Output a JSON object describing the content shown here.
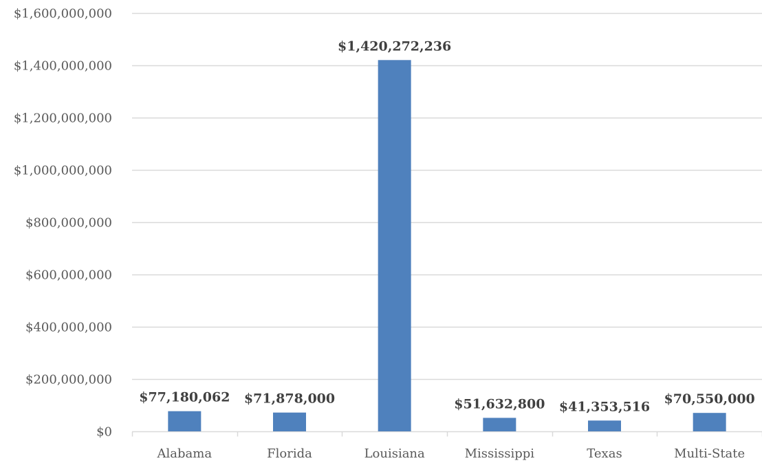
{
  "chart_data": {
    "type": "bar",
    "categories": [
      "Alabama",
      "Florida",
      "Louisiana",
      "Mississippi",
      "Texas",
      "Multi-State"
    ],
    "values": [
      77180062,
      71878000,
      1420272236,
      51632800,
      41353516,
      70550000
    ],
    "data_labels": [
      "$77,180,062",
      "$71,878,000",
      "$1,420,272,236",
      "$51,632,800",
      "$41,353,516",
      "$70,550,000"
    ],
    "y_ticks": [
      0,
      200000000,
      400000000,
      600000000,
      800000000,
      1000000000,
      1200000000,
      1400000000,
      1600000000
    ],
    "y_tick_labels": [
      "$0",
      "$200,000,000",
      "$400,000,000",
      "$600,000,000",
      "$800,000,000",
      "$1,000,000,000",
      "$1,200,000,000",
      "$1,400,000,000",
      "$1,600,000,000"
    ],
    "ylim": [
      0,
      1600000000
    ],
    "title": "",
    "xlabel": "",
    "ylabel": "",
    "grid": true,
    "legend": "none",
    "colors": {
      "bar": "#4f81bd",
      "grid": "#d9d9d9",
      "axis": "#d9d9d9",
      "text": "#595959",
      "data_label": "#404040"
    }
  }
}
